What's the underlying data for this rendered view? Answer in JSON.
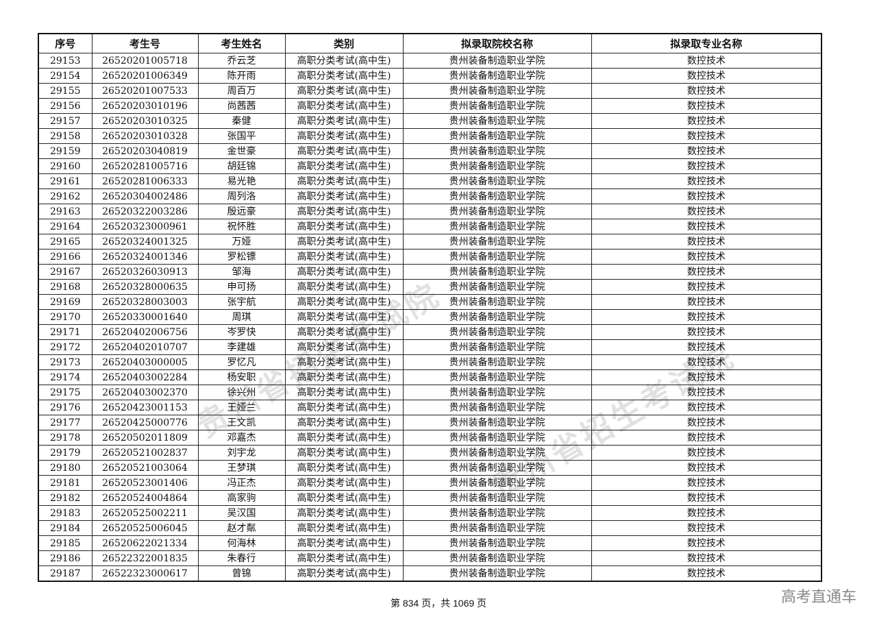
{
  "table": {
    "headers": [
      "序号",
      "考生号",
      "考生姓名",
      "类别",
      "拟录取院校名称",
      "拟录取专业名称"
    ],
    "rows": [
      [
        "29153",
        "26520201005718",
        "乔云芝",
        "高职分类考试(高中生)",
        "贵州装备制造职业学院",
        "数控技术"
      ],
      [
        "29154",
        "26520201006349",
        "陈开雨",
        "高职分类考试(高中生)",
        "贵州装备制造职业学院",
        "数控技术"
      ],
      [
        "29155",
        "26520201007533",
        "周百万",
        "高职分类考试(高中生)",
        "贵州装备制造职业学院",
        "数控技术"
      ],
      [
        "29156",
        "26520203010196",
        "尚茜茜",
        "高职分类考试(高中生)",
        "贵州装备制造职业学院",
        "数控技术"
      ],
      [
        "29157",
        "26520203010325",
        "秦健",
        "高职分类考试(高中生)",
        "贵州装备制造职业学院",
        "数控技术"
      ],
      [
        "29158",
        "26520203010328",
        "张国平",
        "高职分类考试(高中生)",
        "贵州装备制造职业学院",
        "数控技术"
      ],
      [
        "29159",
        "26520203040819",
        "金世豪",
        "高职分类考试(高中生)",
        "贵州装备制造职业学院",
        "数控技术"
      ],
      [
        "29160",
        "26520281005716",
        "胡廷锦",
        "高职分类考试(高中生)",
        "贵州装备制造职业学院",
        "数控技术"
      ],
      [
        "29161",
        "26520281006333",
        "易光艳",
        "高职分类考试(高中生)",
        "贵州装备制造职业学院",
        "数控技术"
      ],
      [
        "29162",
        "26520304002486",
        "周列洛",
        "高职分类考试(高中生)",
        "贵州装备制造职业学院",
        "数控技术"
      ],
      [
        "29163",
        "26520322003286",
        "殷远豪",
        "高职分类考试(高中生)",
        "贵州装备制造职业学院",
        "数控技术"
      ],
      [
        "29164",
        "26520323000961",
        "祝怀胜",
        "高职分类考试(高中生)",
        "贵州装备制造职业学院",
        "数控技术"
      ],
      [
        "29165",
        "26520324001325",
        "万娅",
        "高职分类考试(高中生)",
        "贵州装备制造职业学院",
        "数控技术"
      ],
      [
        "29166",
        "26520324001346",
        "罗松镖",
        "高职分类考试(高中生)",
        "贵州装备制造职业学院",
        "数控技术"
      ],
      [
        "29167",
        "26520326030913",
        "邹海",
        "高职分类考试(高中生)",
        "贵州装备制造职业学院",
        "数控技术"
      ],
      [
        "29168",
        "26520328000635",
        "申可扬",
        "高职分类考试(高中生)",
        "贵州装备制造职业学院",
        "数控技术"
      ],
      [
        "29169",
        "26520328003003",
        "张宇航",
        "高职分类考试(高中生)",
        "贵州装备制造职业学院",
        "数控技术"
      ],
      [
        "29170",
        "26520330001640",
        "周琪",
        "高职分类考试(高中生)",
        "贵州装备制造职业学院",
        "数控技术"
      ],
      [
        "29171",
        "26520402006756",
        "岑罗快",
        "高职分类考试(高中生)",
        "贵州装备制造职业学院",
        "数控技术"
      ],
      [
        "29172",
        "26520402010707",
        "李建雄",
        "高职分类考试(高中生)",
        "贵州装备制造职业学院",
        "数控技术"
      ],
      [
        "29173",
        "26520403000005",
        "罗忆凡",
        "高职分类考试(高中生)",
        "贵州装备制造职业学院",
        "数控技术"
      ],
      [
        "29174",
        "26520403002284",
        "杨安职",
        "高职分类考试(高中生)",
        "贵州装备制造职业学院",
        "数控技术"
      ],
      [
        "29175",
        "26520403002370",
        "徐兴州",
        "高职分类考试(高中生)",
        "贵州装备制造职业学院",
        "数控技术"
      ],
      [
        "29176",
        "26520423001153",
        "王娅兰",
        "高职分类考试(高中生)",
        "贵州装备制造职业学院",
        "数控技术"
      ],
      [
        "29177",
        "26520425000776",
        "王文凯",
        "高职分类考试(高中生)",
        "贵州装备制造职业学院",
        "数控技术"
      ],
      [
        "29178",
        "26520502011809",
        "邓嘉杰",
        "高职分类考试(高中生)",
        "贵州装备制造职业学院",
        "数控技术"
      ],
      [
        "29179",
        "26520521002837",
        "刘宇龙",
        "高职分类考试(高中生)",
        "贵州装备制造职业学院",
        "数控技术"
      ],
      [
        "29180",
        "26520521003064",
        "王梦琪",
        "高职分类考试(高中生)",
        "贵州装备制造职业学院",
        "数控技术"
      ],
      [
        "29181",
        "26520523001406",
        "冯正杰",
        "高职分类考试(高中生)",
        "贵州装备制造职业学院",
        "数控技术"
      ],
      [
        "29182",
        "26520524004864",
        "高家驹",
        "高职分类考试(高中生)",
        "贵州装备制造职业学院",
        "数控技术"
      ],
      [
        "29183",
        "26520525002211",
        "吴汉国",
        "高职分类考试(高中生)",
        "贵州装备制造职业学院",
        "数控技术"
      ],
      [
        "29184",
        "26520525006045",
        "赵才粼",
        "高职分类考试(高中生)",
        "贵州装备制造职业学院",
        "数控技术"
      ],
      [
        "29185",
        "26520622021334",
        "何海林",
        "高职分类考试(高中生)",
        "贵州装备制造职业学院",
        "数控技术"
      ],
      [
        "29186",
        "26522322001835",
        "朱春行",
        "高职分类考试(高中生)",
        "贵州装备制造职业学院",
        "数控技术"
      ],
      [
        "29187",
        "26522323000617",
        "曾锦",
        "高职分类考试(高中生)",
        "贵州装备制造职业学院",
        "数控技术"
      ]
    ]
  },
  "footer": {
    "page_text": "第 834 页，共 1069 页"
  },
  "brand": "高考直通车",
  "watermark": "贵州省招生考试院"
}
